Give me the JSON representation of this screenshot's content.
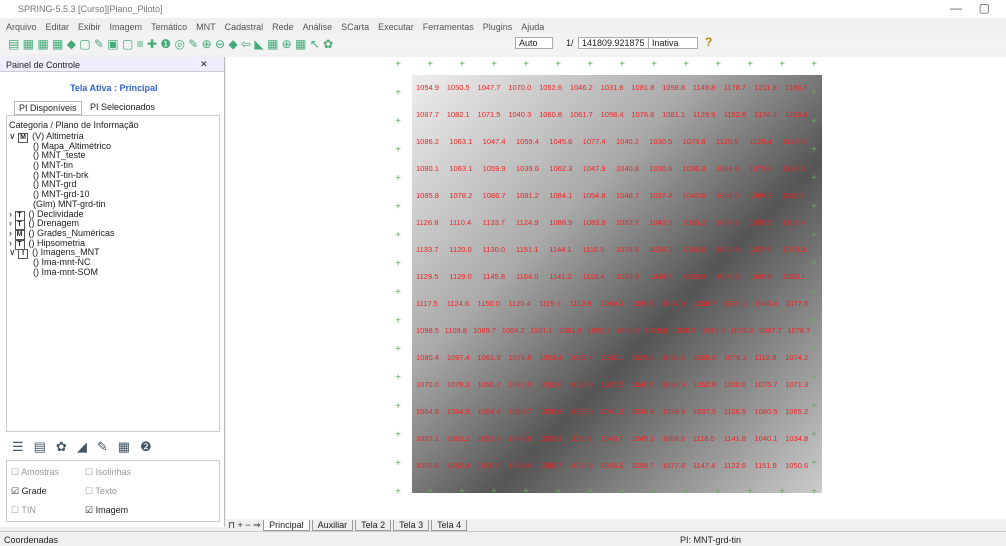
{
  "window": {
    "title": "SPRING-5.5.3 [Curso][Plano_Piloto]"
  },
  "menu": [
    "Arquivo",
    "Editar",
    "Exibir",
    "Imagem",
    "Temático",
    "MNT",
    "Cadastral",
    "Rede",
    "Análise",
    "SCarta",
    "Executar",
    "Ferramentas",
    "Plugins",
    "Ajuda"
  ],
  "toolbar": {
    "mode": "Auto",
    "scale_prefix": "1/",
    "scale": "141809.921875",
    "state": "Inativa",
    "help": "?"
  },
  "panel": {
    "title": "Painel de Controle",
    "active": "Tela Ativa : Principal",
    "tabs": [
      "PI Disponíveis",
      "PI Selecionados"
    ],
    "heading": "Categoria / Plano de Informação",
    "tree": [
      {
        "icon": "M",
        "label": "(V) Altimetria",
        "children": [
          "() Mapa_Altimétrico",
          "() MNT_teste",
          "() MNT-tin",
          "() MNT-tin-brk",
          "() MNT-grd",
          "() MNT-grd-10",
          "(Glm) MNT-grd-tin"
        ]
      },
      {
        "icon": "T",
        "label": "() Declividade",
        "children": []
      },
      {
        "icon": "T",
        "label": "() Drenagem",
        "children": []
      },
      {
        "icon": "M",
        "label": "() Grades_Numéricas",
        "children": []
      },
      {
        "icon": "T",
        "label": "() Hipsometria",
        "children": []
      },
      {
        "icon": "I",
        "label": "() Imagens_MNT",
        "children": [
          "() Ima-mnt-NC",
          "() Ima-mnt-SOM"
        ]
      }
    ],
    "checks": [
      {
        "label": "Amostras",
        "checked": false,
        "enabled": false
      },
      {
        "label": "Isolinhas",
        "checked": false,
        "enabled": false
      },
      {
        "label": "Grade",
        "checked": true,
        "enabled": true
      },
      {
        "label": "Texto",
        "checked": false,
        "enabled": false
      },
      {
        "label": "TIN",
        "checked": false,
        "enabled": false
      },
      {
        "label": "Imagem",
        "checked": true,
        "enabled": true
      }
    ]
  },
  "map": {
    "labels": [
      [
        "1054.9",
        "1050.5",
        "1047.7",
        "1070.0",
        "1052.6",
        "1046.2",
        "1031.6",
        "1081.8",
        "1098.8",
        "1149.8",
        "1178.7",
        "1211.8",
        "1185.7"
      ],
      [
        "1087.7",
        "1082.1",
        "1071.5",
        "1040.3",
        "1060.8",
        "1061.7",
        "1058.4",
        "1076.8",
        "1081.1",
        "1129.9",
        "1152.8",
        "1174.2",
        "1153.4"
      ],
      [
        "1086.2",
        "1063.1",
        "1047.4",
        "1059.4",
        "1045.6",
        "1077.4",
        "1040.2",
        "1030.5",
        "1073.8",
        "1120.5",
        "1128.4",
        "1129.0"
      ],
      [
        "1080.1",
        "1063.1",
        "1059.9",
        "1039.6",
        "1062.3",
        "1047.9",
        "1040.8",
        "1030.6",
        "1036.3",
        "1034.8",
        "1078.3",
        "1128.3"
      ],
      [
        "1085.8",
        "1078.2",
        "1086.7",
        "1081.2",
        "1084.1",
        "1054.8",
        "1040.7",
        "1037.4",
        "1040.6",
        "1045.0",
        "1066.2",
        "1116.6"
      ],
      [
        "1126.8",
        "1110.4",
        "1133.7",
        "1124.9",
        "1088.9",
        "1083.9",
        "1062.7",
        "1042.0",
        "1035.2",
        "1040.2",
        "1058.5",
        "1109.4"
      ],
      [
        "1133.7",
        "1120.0",
        "1130.0",
        "1151.1",
        "1144.1",
        "1116.0",
        "1079.8",
        "1034.2",
        "1035.6",
        "1036.9",
        "1037.0",
        "1078.3"
      ],
      [
        "1129.5",
        "1129.0",
        "1145.8",
        "1164.0",
        "1141.2",
        "1119.4",
        "1080.9",
        "1044.7",
        "1039.0",
        "1035.3",
        "1045.6",
        "1050.1"
      ],
      [
        "1117.5",
        "1124.6",
        "1150.0",
        "1120.4",
        "1119.7",
        "1112.9",
        "1080.3",
        "1065.5",
        "1047.9",
        "1038.7",
        "1035.2",
        "1040.4",
        "1077.5"
      ],
      [
        "1098.5",
        "1109.8",
        "1089.7",
        "1084.2",
        "1101.1",
        "1081.5",
        "1050.2",
        "1028.3",
        "1028.8",
        "1030.5",
        "1043.0",
        "1076.3",
        "1097.7",
        "1076.7"
      ],
      [
        "1080.4",
        "1097.4",
        "1081.3",
        "1074.8",
        "1063.4",
        "1039.4",
        "1032.1",
        "1025.0",
        "1030.2",
        "1035.2",
        "1078.3",
        "1110.8",
        "1074.2"
      ],
      [
        "1070.0",
        "1079.3",
        "1056.7",
        "1037.0",
        "1032.0",
        "1029.9",
        "1027.2",
        "1040.5",
        "1032.9",
        "1052.8",
        "1100.0",
        "1075.7",
        "1071.3"
      ],
      [
        "1064.8",
        "1064.9",
        "1064.4",
        "1050.7",
        "1039.8",
        "1039.6",
        "1041.3",
        "1040.8",
        "1038.9",
        "1037.9",
        "1106.5",
        "1080.5",
        "1065.2"
      ],
      [
        "1067.1",
        "1063.2",
        "1051.7",
        "1045.8",
        "1053.9",
        "1050.1",
        "1040.7",
        "1045.1",
        "1058.6",
        "1116.5",
        "1141.8",
        "1040.1",
        "1034.8"
      ],
      [
        "1065.5",
        "1052.4",
        "1060.0",
        "1059.4",
        "1050.7",
        "1030.8",
        "1035.2",
        "1058.7",
        "1077.8",
        "1147.4",
        "1122.6",
        "1151.8",
        "1050.6"
      ]
    ]
  },
  "tabs": [
    "Principal",
    "Auxiliar",
    "Tela 2",
    "Tela 3",
    "Tela 4"
  ],
  "status": {
    "left": "Coordenadas",
    "right": "PI: MNT-grd-tin"
  }
}
